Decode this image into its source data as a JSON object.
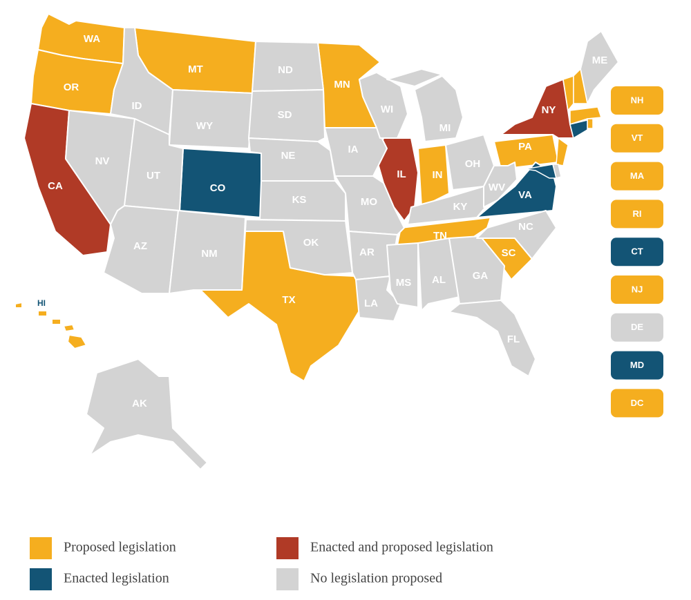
{
  "legend": [
    {
      "label": "Proposed legislation",
      "color": "#f5ae1f",
      "states": [
        "WA",
        "OR",
        "MT",
        "MN",
        "TX",
        "IN",
        "TN",
        "SC",
        "PA",
        "HI"
      ],
      "boxes": [
        "NH",
        "VT",
        "MA",
        "RI",
        "NJ",
        "DC"
      ]
    },
    {
      "label": "Enacted and proposed legislation",
      "color": "#b03a26",
      "states": [
        "CA",
        "IL",
        "NY"
      ]
    },
    {
      "label": "Enacted legislation",
      "color": "#135475",
      "states": [
        "CO",
        "VA"
      ],
      "boxes": [
        "CT",
        "MD"
      ]
    },
    {
      "label": "No legislation proposed",
      "color": "#d3d3d3",
      "states": [
        "NV",
        "ID",
        "WY",
        "UT",
        "AZ",
        "NM",
        "ND",
        "SD",
        "NE",
        "KS",
        "OK",
        "IA",
        "MO",
        "AR",
        "LA",
        "WI",
        "MI",
        "OH",
        "KY",
        "MS",
        "AL",
        "GA",
        "FL",
        "NC",
        "WV",
        "ME",
        "AK"
      ],
      "boxes": [
        "DE"
      ]
    }
  ]
}
